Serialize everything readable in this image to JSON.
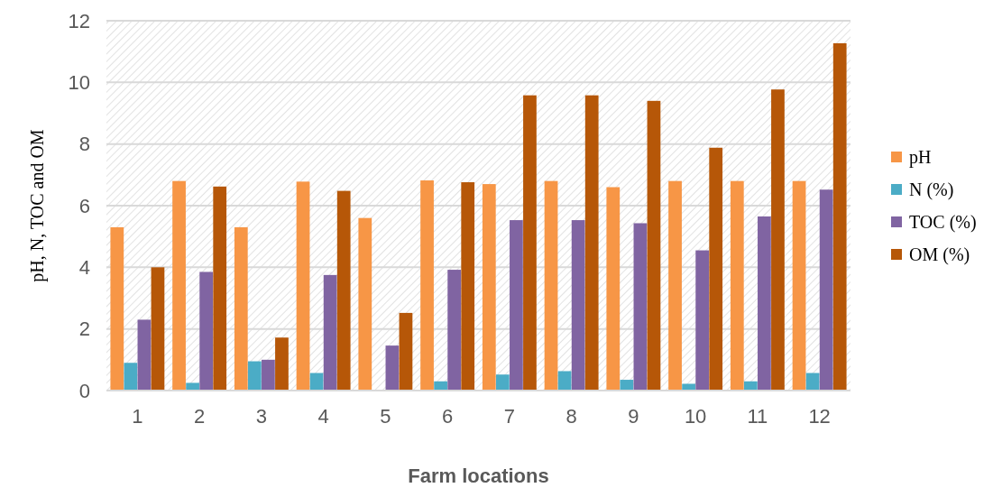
{
  "chart_data": {
    "type": "bar",
    "xlabel": "Farm locations",
    "ylabel": "pH, N, TOC and OM",
    "categories": [
      "1",
      "2",
      "3",
      "4",
      "5",
      "6",
      "7",
      "8",
      "9",
      "10",
      "11",
      "12"
    ],
    "series": [
      {
        "name": "pH",
        "color": "#f79646",
        "values": [
          5.3,
          6.8,
          5.3,
          6.78,
          5.6,
          6.82,
          6.7,
          6.8,
          6.6,
          6.8,
          6.8,
          6.8
        ]
      },
      {
        "name": "N (%)",
        "color": "#4bacc6",
        "values": [
          0.9,
          0.25,
          0.95,
          0.57,
          null,
          0.3,
          0.52,
          0.63,
          0.35,
          0.22,
          0.3,
          0.57
        ]
      },
      {
        "name": "TOC (%)",
        "color": "#8064a2",
        "values": [
          2.3,
          3.85,
          1.0,
          3.75,
          1.46,
          3.92,
          5.53,
          5.53,
          5.43,
          4.55,
          5.65,
          6.52
        ]
      },
      {
        "name": "OM (%)",
        "color": "#b65708",
        "values": [
          4.0,
          6.62,
          1.72,
          6.48,
          2.52,
          6.76,
          9.58,
          9.58,
          9.4,
          7.88,
          9.77,
          11.27
        ]
      }
    ],
    "ylim": [
      0,
      12
    ],
    "yticks": [
      0,
      2,
      4,
      6,
      8,
      10,
      12
    ],
    "grid": "y",
    "legend": "right"
  }
}
